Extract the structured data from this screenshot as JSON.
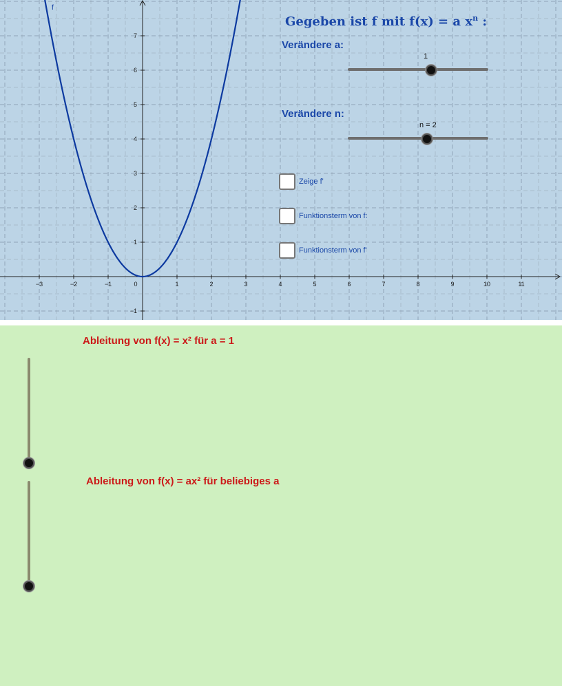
{
  "graph": {
    "title_prefix": "Gegeben ist f mit f(x) = a x",
    "title_exponent": "n",
    "title_suffix": " :",
    "function_label": "f",
    "x_ticks": [
      "−3",
      "−2",
      "−1",
      "0",
      "1",
      "2",
      "3",
      "4",
      "5",
      "6",
      "7",
      "8",
      "9",
      "10",
      "11"
    ],
    "y_ticks": [
      "−1",
      "1",
      "2",
      "3",
      "4",
      "5",
      "6",
      "7"
    ],
    "curve_color": "#0d3aa0",
    "background_color": "#bcd4e6"
  },
  "controls": {
    "slider_a_label": "Verändere a:",
    "slider_a_value_text": "1",
    "slider_a_value": 1,
    "slider_n_label": "Verändere n:",
    "slider_n_value_text": "n = 2",
    "slider_n_value": 2,
    "checkboxes": [
      {
        "label": "Zeige f'",
        "checked": false
      },
      {
        "label": "Funktionsterm von f:",
        "checked": false
      },
      {
        "label": "Funktionsterm von f'",
        "checked": false
      }
    ]
  },
  "lower": {
    "background_color": "#cff0c0",
    "section1_title": "Ableitung von f(x) = x² für a = 1",
    "section2_title": "Ableitung von f(x)  = ax²  für beliebiges a"
  }
}
